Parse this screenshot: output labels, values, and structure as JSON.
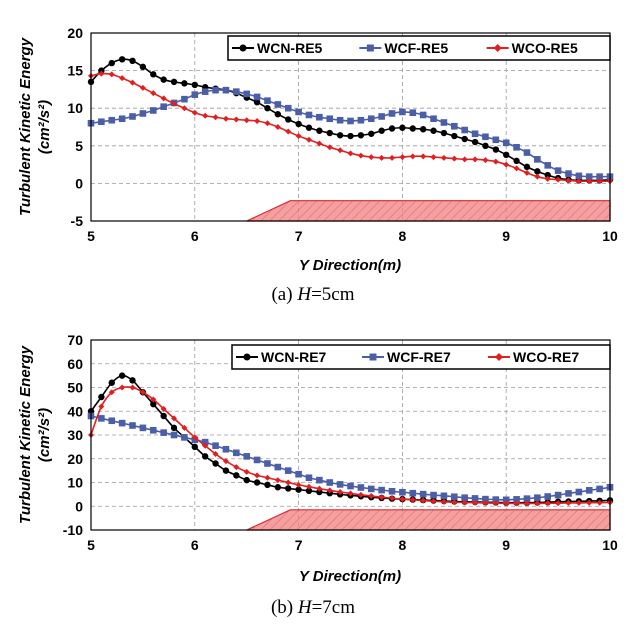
{
  "chart_data": [
    {
      "type": "line",
      "caption_prefix": "(a)",
      "caption_var": "H",
      "caption_val": "=5cm",
      "xlabel": "Y Direction(m)",
      "ylabel_line1": "Turbulent Kinetic Energy",
      "ylabel_line2": "(cm²/s²)",
      "xlim": [
        5,
        10
      ],
      "ylim": [
        -5,
        20
      ],
      "xticks": [
        5,
        6,
        7,
        8,
        9,
        10
      ],
      "yticks": [
        -5,
        0,
        5,
        10,
        15,
        20
      ],
      "x": [
        5.0,
        5.1,
        5.2,
        5.3,
        5.4,
        5.5,
        5.6,
        5.7,
        5.8,
        5.9,
        6.0,
        6.1,
        6.2,
        6.3,
        6.4,
        6.5,
        6.6,
        6.7,
        6.8,
        6.9,
        7.0,
        7.1,
        7.2,
        7.3,
        7.4,
        7.5,
        7.6,
        7.7,
        7.8,
        7.9,
        8.0,
        8.1,
        8.2,
        8.3,
        8.4,
        8.5,
        8.6,
        8.7,
        8.8,
        8.9,
        9.0,
        9.1,
        9.2,
        9.3,
        9.4,
        9.5,
        9.6,
        9.7,
        9.8,
        9.9,
        10.0
      ],
      "ramp": [
        [
          6.5,
          -5
        ],
        [
          6.92,
          -2.3
        ],
        [
          10,
          -2.3
        ],
        [
          10,
          -5
        ]
      ],
      "series": [
        {
          "name": "WCN-RE5",
          "color": "#000000",
          "marker": "circle",
          "values": [
            13.5,
            15.0,
            16.0,
            16.5,
            16.3,
            15.5,
            14.5,
            13.8,
            13.5,
            13.3,
            13.1,
            12.8,
            12.6,
            12.4,
            12.0,
            11.4,
            10.8,
            10.0,
            9.2,
            8.5,
            7.9,
            7.4,
            7.0,
            6.7,
            6.4,
            6.3,
            6.4,
            6.6,
            7.0,
            7.3,
            7.4,
            7.3,
            7.2,
            7.0,
            6.7,
            6.3,
            5.9,
            5.5,
            5.0,
            4.5,
            3.8,
            3.0,
            2.2,
            1.6,
            1.1,
            0.7,
            0.5,
            0.4,
            0.4,
            0.4,
            0.5
          ]
        },
        {
          "name": "WCF-RE5",
          "color": "#4a5fa8",
          "marker": "square",
          "values": [
            8.0,
            8.2,
            8.4,
            8.6,
            8.9,
            9.3,
            9.7,
            10.2,
            10.7,
            11.2,
            11.8,
            12.2,
            12.4,
            12.4,
            12.2,
            11.9,
            11.5,
            11.0,
            10.5,
            10.0,
            9.5,
            9.1,
            8.8,
            8.6,
            8.4,
            8.3,
            8.4,
            8.6,
            8.9,
            9.3,
            9.5,
            9.4,
            9.1,
            8.6,
            8.1,
            7.6,
            7.1,
            6.6,
            6.2,
            5.8,
            5.4,
            4.8,
            4.1,
            3.2,
            2.4,
            1.7,
            1.3,
            1.0,
            0.9,
            0.9,
            0.9
          ]
        },
        {
          "name": "WCO-RE5",
          "color": "#e02020",
          "marker": "diamond",
          "values": [
            14.3,
            14.6,
            14.5,
            14.0,
            13.4,
            12.7,
            12.0,
            11.3,
            10.6,
            10.0,
            9.4,
            9.0,
            8.8,
            8.6,
            8.5,
            8.4,
            8.3,
            8.0,
            7.5,
            6.9,
            6.3,
            5.8,
            5.3,
            4.8,
            4.4,
            4.0,
            3.7,
            3.5,
            3.4,
            3.4,
            3.5,
            3.6,
            3.6,
            3.5,
            3.4,
            3.3,
            3.2,
            3.2,
            3.1,
            2.9,
            2.5,
            2.0,
            1.4,
            0.9,
            0.6,
            0.5,
            0.4,
            0.3,
            0.3,
            0.3,
            0.3
          ]
        }
      ]
    },
    {
      "type": "line",
      "caption_prefix": "(b)",
      "caption_var": "H",
      "caption_val": "=7cm",
      "xlabel": "Y Direction(m)",
      "ylabel_line1": "Turbulent Kinetic Energy",
      "ylabel_line2": "(cm²/s²)",
      "xlim": [
        5,
        10
      ],
      "ylim": [
        -10,
        70
      ],
      "xticks": [
        5,
        6,
        7,
        8,
        9,
        10
      ],
      "yticks": [
        -10,
        0,
        10,
        20,
        30,
        40,
        50,
        60,
        70
      ],
      "x": [
        5.0,
        5.1,
        5.2,
        5.3,
        5.4,
        5.5,
        5.6,
        5.7,
        5.8,
        5.9,
        6.0,
        6.1,
        6.2,
        6.3,
        6.4,
        6.5,
        6.6,
        6.7,
        6.8,
        6.9,
        7.0,
        7.1,
        7.2,
        7.3,
        7.4,
        7.5,
        7.6,
        7.7,
        7.8,
        7.9,
        8.0,
        8.1,
        8.2,
        8.3,
        8.4,
        8.5,
        8.6,
        8.7,
        8.8,
        8.9,
        9.0,
        9.1,
        9.2,
        9.3,
        9.4,
        9.5,
        9.6,
        9.7,
        9.8,
        9.9,
        10.0
      ],
      "ramp": [
        [
          6.5,
          -10
        ],
        [
          6.92,
          -1.5
        ],
        [
          10,
          -1.5
        ],
        [
          10,
          -10
        ]
      ],
      "series": [
        {
          "name": "WCN-RE7",
          "color": "#000000",
          "marker": "circle",
          "values": [
            40.0,
            46.0,
            52.0,
            55.0,
            53.0,
            48.0,
            43.0,
            38.0,
            33.0,
            29.0,
            25.0,
            21.0,
            18.0,
            15.0,
            13.0,
            11.0,
            10.0,
            9.0,
            8.0,
            7.5,
            7.0,
            6.5,
            6.0,
            5.5,
            5.0,
            4.6,
            4.2,
            3.8,
            3.5,
            3.2,
            3.0,
            2.8,
            2.6,
            2.4,
            2.2,
            2.0,
            1.9,
            1.8,
            1.7,
            1.6,
            1.5,
            1.5,
            1.5,
            1.6,
            1.7,
            1.9,
            2.0,
            2.1,
            2.2,
            2.3,
            2.5
          ]
        },
        {
          "name": "WCF-RE7",
          "color": "#4a5fa8",
          "marker": "square",
          "values": [
            38.0,
            37.0,
            36.0,
            35.0,
            34.0,
            33.0,
            32.0,
            31.0,
            30.0,
            29.0,
            28.0,
            27.0,
            25.5,
            24.0,
            22.5,
            21.0,
            19.5,
            18.0,
            16.5,
            15.0,
            13.5,
            12.0,
            11.0,
            10.0,
            9.2,
            8.5,
            7.9,
            7.3,
            6.8,
            6.3,
            5.9,
            5.5,
            5.1,
            4.7,
            4.4,
            4.0,
            3.6,
            3.3,
            3.0,
            2.8,
            2.7,
            2.9,
            3.2,
            3.6,
            4.1,
            4.7,
            5.4,
            6.0,
            6.7,
            7.3,
            8.0
          ]
        },
        {
          "name": "WCO-RE7",
          "color": "#e02020",
          "marker": "diamond",
          "values": [
            30.0,
            42.0,
            48.0,
            50.0,
            50.0,
            48.0,
            45.0,
            41.0,
            37.0,
            33.0,
            29.0,
            25.5,
            22.0,
            19.0,
            16.5,
            14.5,
            13.0,
            12.0,
            11.0,
            10.0,
            9.0,
            8.2,
            7.4,
            6.7,
            6.0,
            5.4,
            4.8,
            4.3,
            3.8,
            3.4,
            3.0,
            2.7,
            2.4,
            2.1,
            1.9,
            1.7,
            1.6,
            1.5,
            1.4,
            1.3,
            1.2,
            1.2,
            1.2,
            1.2,
            1.3,
            1.3,
            1.4,
            1.4,
            1.5,
            1.5,
            1.6
          ]
        }
      ]
    }
  ]
}
